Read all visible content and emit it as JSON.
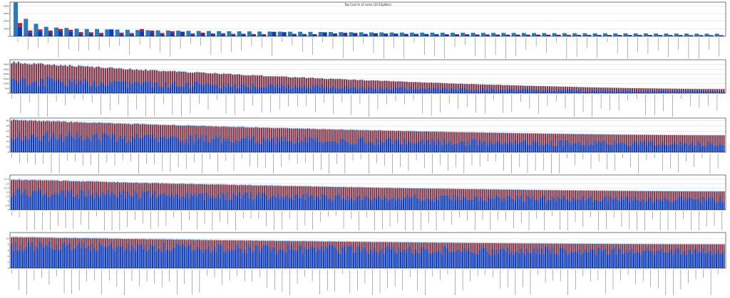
{
  "chart_data": [
    {
      "type": "bar",
      "title": "Top Cost % of costs (10.25ptBar)",
      "xlabel": "",
      "ylabel": "",
      "ylim": [
        0,
        4500
      ],
      "yticks": [
        0,
        1000,
        2000,
        3000,
        4000
      ],
      "grid": true,
      "category_count": 70,
      "series": [
        {
          "values": [
            4450,
            2300,
            1650,
            1250,
            1150,
            1100,
            1000,
            950,
            950,
            900,
            880,
            860,
            820,
            800,
            780,
            760,
            740,
            720,
            700,
            690,
            680,
            660,
            650,
            640,
            630,
            620,
            610,
            600,
            590,
            580,
            570,
            560,
            550,
            540,
            530,
            520,
            510,
            500,
            495,
            490,
            485,
            480,
            475,
            470,
            465,
            460,
            455,
            450,
            445,
            440,
            435,
            430,
            425,
            420,
            415,
            410,
            405,
            400,
            395,
            390,
            385,
            380,
            375,
            370,
            365,
            360,
            355,
            350,
            345,
            340
          ]
        },
        {
          "values": [
            1250,
            450,
            650,
            520,
            720,
            640,
            340,
            330,
            260,
            880,
            300,
            260,
            650,
            520,
            300,
            460,
            580,
            260,
            380,
            300,
            260,
            250,
            270,
            240,
            220,
            560,
            510,
            270,
            260,
            240,
            500,
            360,
            430,
            410,
            300,
            380,
            340,
            330,
            300,
            290,
            280,
            260,
            250,
            240,
            240,
            220,
            220,
            210,
            200,
            200,
            190,
            190,
            180,
            180,
            170,
            170,
            170,
            160,
            160,
            160,
            150,
            150,
            150,
            140,
            140,
            140,
            130,
            130,
            130,
            120
          ]
        },
        {
          "values": [
            500,
            320,
            260,
            240,
            240,
            220,
            210,
            200,
            190,
            40,
            180,
            170,
            300,
            230,
            140,
            200,
            40,
            120,
            100,
            90,
            140,
            80,
            70,
            60,
            60,
            30,
            40,
            60,
            50,
            50,
            40,
            30,
            40,
            30,
            30,
            30,
            30,
            30,
            30,
            30,
            30,
            30,
            30,
            30,
            30,
            30,
            30,
            30,
            30,
            30,
            30,
            30,
            30,
            30,
            30,
            30,
            30,
            30,
            30,
            30,
            30,
            30,
            30,
            30,
            30,
            30,
            30,
            30,
            30,
            30
          ]
        }
      ]
    },
    {
      "type": "bar",
      "ylim": [
        0,
        3500
      ],
      "yticks": [
        0,
        500,
        1000,
        1500,
        2000,
        2500,
        3000
      ],
      "grid": true,
      "category_count": 320,
      "series": [
        {
          "decay_from": 3300,
          "decay_to": 420
        },
        {
          "base_fraction": 0.4
        },
        {
          "base_fraction": 0.04
        }
      ]
    },
    {
      "type": "bar",
      "ylim": [
        0,
        65
      ],
      "yticks": [
        0,
        10,
        20,
        30,
        40,
        50,
        60
      ],
      "grid": true,
      "category_count": 360,
      "series": [
        {
          "decay_from": 62,
          "decay_to": 32
        },
        {
          "base_fraction": 0.5
        }
      ]
    },
    {
      "type": "bar",
      "ylim": [
        0,
        20
      ],
      "yticks": [
        0.0,
        2.5,
        5.0,
        7.5,
        10.0,
        12.5,
        15.0,
        17.5
      ],
      "grid": true,
      "category_count": 370,
      "series": [
        {
          "decay_from": 17.5,
          "decay_to": 10.5
        },
        {
          "base_fraction": 0.55
        }
      ]
    },
    {
      "type": "bar",
      "ylim": [
        0,
        12
      ],
      "yticks": [
        0,
        2,
        4,
        6,
        8,
        10
      ],
      "grid": true,
      "category_count": 380,
      "series": [
        {
          "decay_from": 10.5,
          "decay_to": 8
        },
        {
          "base_fraction": 0.7
        }
      ]
    }
  ],
  "colors": {
    "total": "#2c7bb6",
    "light_total": "#9fd0ef",
    "maroon": "#8e2f3c",
    "blue": "#0b3cc4",
    "red": "#e01616"
  }
}
